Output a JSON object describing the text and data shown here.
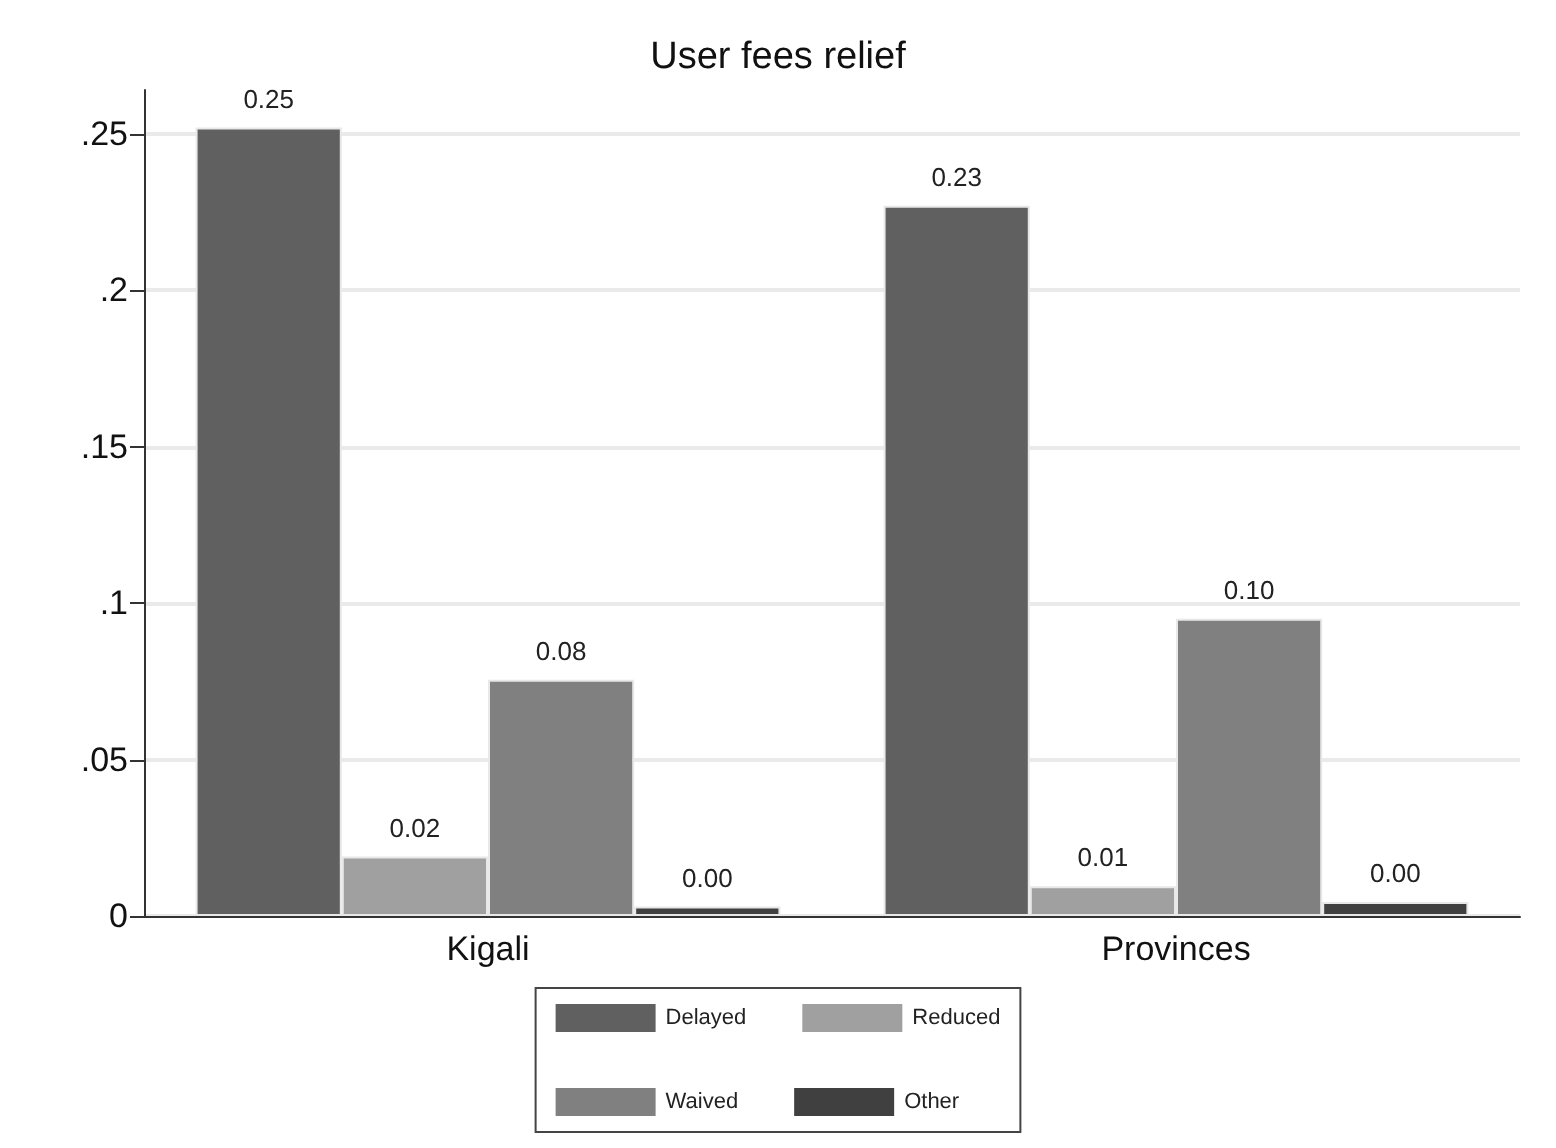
{
  "chart_data": {
    "type": "bar",
    "title": "User fees relief",
    "categories": [
      "Kigali",
      "Provinces"
    ],
    "series": [
      {
        "name": "Delayed",
        "color": "#606060",
        "values": [
          0.252,
          0.227
        ],
        "value_labels": [
          "0.25",
          "0.23"
        ]
      },
      {
        "name": "Reduced",
        "color": "#a0a0a0",
        "values": [
          0.019,
          0.0095
        ],
        "value_labels": [
          "0.02",
          "0.01"
        ]
      },
      {
        "name": "Waived",
        "color": "#808080",
        "values": [
          0.0755,
          0.095
        ],
        "value_labels": [
          "0.08",
          "0.10"
        ]
      },
      {
        "name": "Other",
        "color": "#404040",
        "values": [
          0.003,
          0.0045
        ],
        "value_labels": [
          "0.00",
          "0.00"
        ]
      }
    ],
    "ylim": [
      0,
      0.264
    ],
    "yticks": [
      {
        "value": 0,
        "label": "0"
      },
      {
        "value": 0.05,
        "label": ".05"
      },
      {
        "value": 0.1,
        "label": ".1"
      },
      {
        "value": 0.15,
        "label": ".15"
      },
      {
        "value": 0.2,
        "label": ".2"
      },
      {
        "value": 0.25,
        "label": ".25"
      }
    ],
    "grid": "y",
    "legend": "bottom"
  }
}
